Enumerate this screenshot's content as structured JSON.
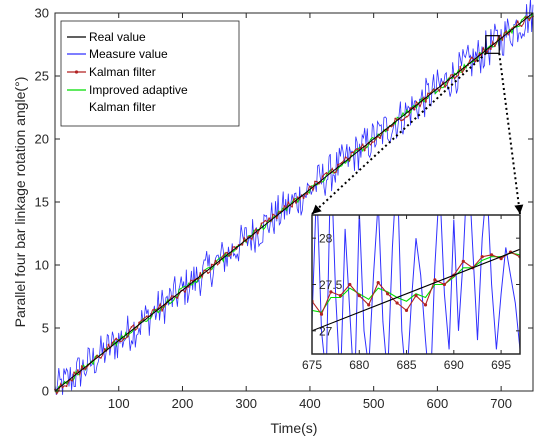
{
  "chart_data": {
    "type": "line",
    "xlabel": "Time(s)",
    "ylabel": "Parallel four bar linkage rotation angle(°)",
    "xlim": [
      0,
      750
    ],
    "ylim": [
      0,
      30
    ],
    "xticks": [
      100,
      200,
      300,
      400,
      500,
      600,
      700
    ],
    "yticks": [
      0,
      5,
      10,
      15,
      20,
      25,
      30
    ],
    "grid": false,
    "legend_position": "top-left",
    "series": [
      {
        "name": "Real value",
        "color": "#000000",
        "x": [
          0,
          750
        ],
        "y": [
          0,
          30
        ]
      },
      {
        "name": "Measure value",
        "color": "#3030ff",
        "noise_amplitude": 1.0
      },
      {
        "name": "Kalman filter",
        "color": "#b22222",
        "marker": "dot",
        "noise_amplitude": 0.25
      },
      {
        "name": "Improved adaptive Kalman filter",
        "legend_lines": [
          "Improved adaptive",
          "Kalman filter"
        ],
        "color": "#00dd00",
        "noise_amplitude": 0.2
      }
    ],
    "zoom_marker": {
      "x": [
        676,
        697
      ],
      "y": [
        26.8,
        28.2
      ]
    },
    "inset": {
      "xlim": [
        675,
        697
      ],
      "ylim": [
        26.75,
        28.25
      ],
      "xticks": [
        675,
        680,
        685,
        690,
        695
      ],
      "yticks": [
        27,
        27.5,
        28
      ],
      "series": [
        {
          "name": "Real value",
          "x": [
            675,
            697
          ],
          "y": [
            27.0,
            27.88
          ]
        },
        {
          "name": "Measure value",
          "x": [
            675,
            675.5,
            676,
            676.5,
            677,
            677.5,
            678,
            678.5,
            679,
            679.5,
            680,
            680.5,
            681,
            681.5,
            682,
            682.5,
            683,
            683.5,
            684,
            684.5,
            685,
            685.5,
            686,
            686.5,
            687,
            687.5,
            688,
            688.5,
            689,
            689.5,
            690,
            690.5,
            691,
            691.5,
            692,
            692.5,
            693,
            693.5,
            694,
            694.5,
            695,
            695.5,
            696,
            696.5,
            697
          ],
          "y": [
            27.1,
            28.6,
            27.0,
            26.5,
            28.9,
            27.4,
            26.4,
            28.1,
            27.2,
            26.3,
            28.3,
            27.0,
            26.6,
            27.6,
            28.4,
            27.1,
            26.5,
            27.9,
            28.8,
            27.0,
            26.4,
            27.3,
            28.0,
            27.6,
            26.9,
            26.3,
            27.7,
            28.6,
            27.4,
            26.8,
            28.2,
            27.0,
            27.8,
            28.9,
            27.9,
            26.9,
            28.0,
            28.6,
            27.5,
            26.8,
            27.4,
            27.9,
            27.6,
            27.3,
            26.8
          ]
        },
        {
          "name": "Kalman filter",
          "x": [
            675,
            676,
            677,
            678,
            679,
            680,
            681,
            682,
            683,
            684,
            685,
            686,
            687,
            688,
            689,
            690,
            691,
            692,
            693,
            694,
            695,
            696,
            697
          ],
          "y": [
            27.32,
            27.18,
            27.42,
            27.38,
            27.5,
            27.38,
            27.28,
            27.52,
            27.4,
            27.3,
            27.22,
            27.38,
            27.28,
            27.55,
            27.5,
            27.6,
            27.75,
            27.68,
            27.8,
            27.82,
            27.78,
            27.85,
            27.8
          ]
        },
        {
          "name": "Improved adaptive Kalman filter",
          "x": [
            675,
            676,
            677,
            678,
            679,
            680,
            681,
            682,
            683,
            684,
            685,
            686,
            687,
            688,
            689,
            690,
            691,
            692,
            693,
            694,
            695,
            696,
            697
          ],
          "y": [
            27.22,
            27.2,
            27.36,
            27.36,
            27.46,
            27.4,
            27.34,
            27.46,
            27.42,
            27.36,
            27.32,
            27.4,
            27.36,
            27.5,
            27.5,
            27.58,
            27.68,
            27.68,
            27.76,
            27.8,
            27.8,
            27.84,
            27.82
          ]
        }
      ]
    }
  }
}
